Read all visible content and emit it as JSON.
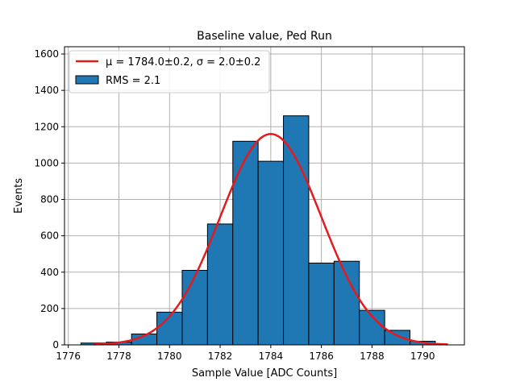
{
  "chart_data": {
    "type": "bar",
    "title": "Baseline value, Ped Run",
    "xlabel": "Sample Value [ADC Counts]",
    "ylabel": "Events",
    "xlim": [
      1775.85,
      1791.65
    ],
    "ylim": [
      0,
      1640
    ],
    "grid": true,
    "legend_position": "top-left",
    "bin_width": 1,
    "histogram": {
      "name": "RMS = 2.1",
      "color": "#1f77b4",
      "edge_color": "#000000",
      "bins": [
        {
          "left": 1776.5,
          "value": 10
        },
        {
          "left": 1777.5,
          "value": 15
        },
        {
          "left": 1778.5,
          "value": 60
        },
        {
          "left": 1779.5,
          "value": 180
        },
        {
          "left": 1780.5,
          "value": 410
        },
        {
          "left": 1781.5,
          "value": 665
        },
        {
          "left": 1782.5,
          "value": 1120
        },
        {
          "left": 1783.5,
          "value": 1010
        },
        {
          "left": 1784.5,
          "value": 1260
        },
        {
          "left": 1785.5,
          "value": 450
        },
        {
          "left": 1786.5,
          "value": 460
        },
        {
          "left": 1787.5,
          "value": 190
        },
        {
          "left": 1788.5,
          "value": 80
        },
        {
          "left": 1789.5,
          "value": 20
        }
      ]
    },
    "fit": {
      "name": "μ = 1784.0±0.2, σ = 2.0±0.2",
      "color": "#e41a1c",
      "mu": 1784.0,
      "sigma": 2.0,
      "amplitude": 1160,
      "x_range": [
        1777,
        1791
      ]
    },
    "x_ticks": [
      1776,
      1778,
      1780,
      1782,
      1784,
      1786,
      1788,
      1790
    ],
    "y_ticks": [
      0,
      200,
      400,
      600,
      800,
      1000,
      1200,
      1400,
      1600
    ]
  }
}
